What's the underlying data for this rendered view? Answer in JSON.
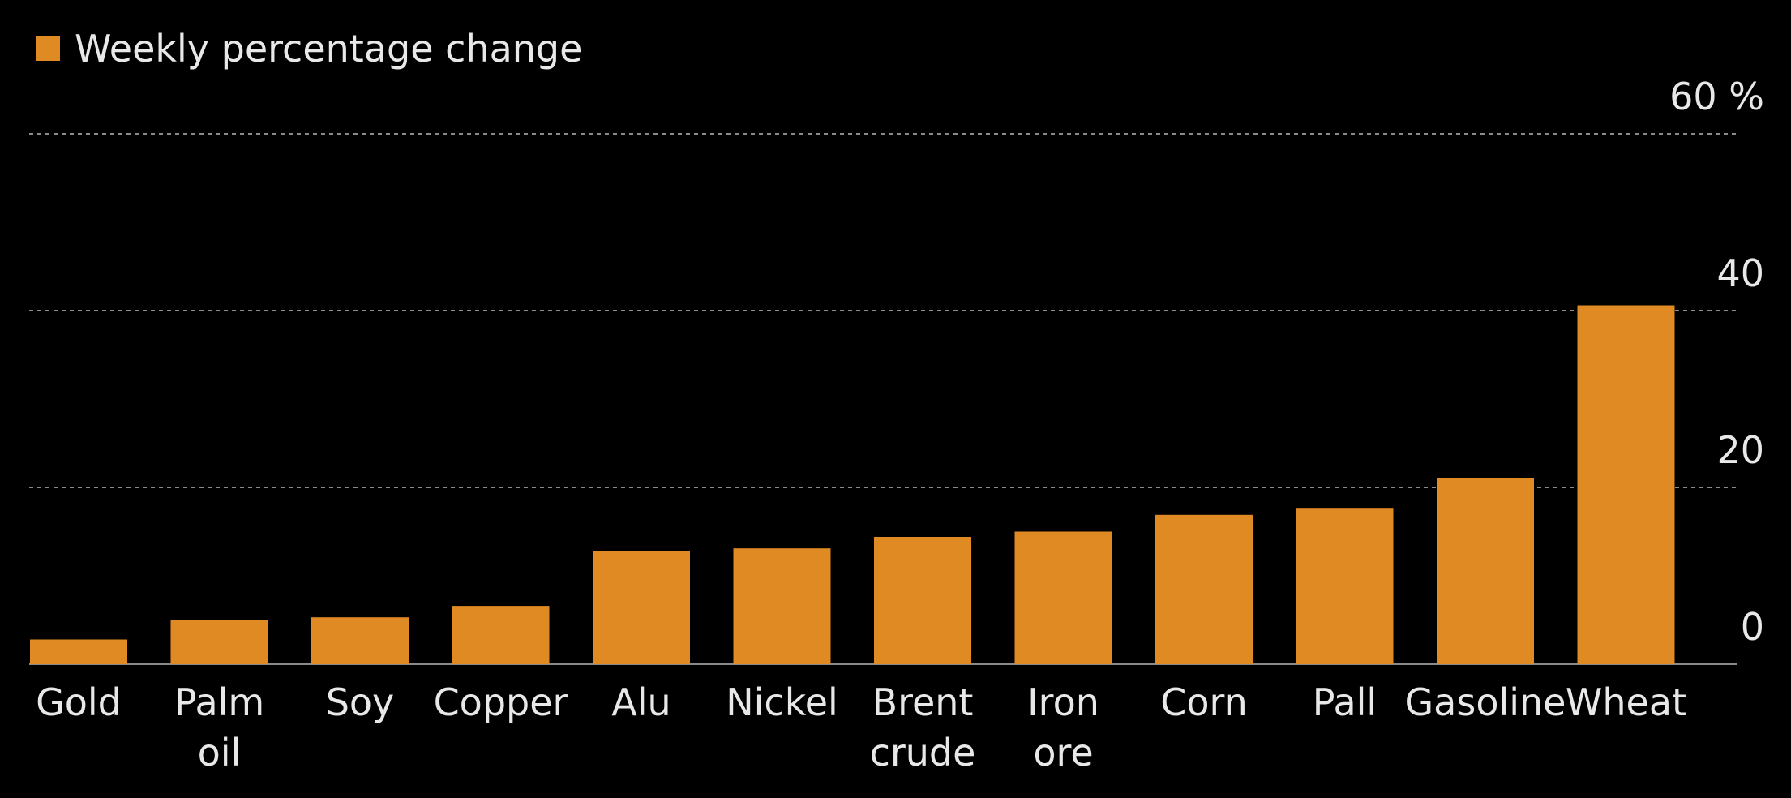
{
  "colors": {
    "background": "#000000",
    "bar": "#E08A24",
    "text": "#E8E8E8",
    "grid": "#8A8A8A"
  },
  "chart_data": {
    "type": "bar",
    "legend": {
      "label": "Weekly percentage change",
      "placement": "top-left"
    },
    "categories": [
      [
        "Gold"
      ],
      [
        "Palm",
        "oil"
      ],
      [
        "Soy"
      ],
      [
        "Copper"
      ],
      [
        "Alu"
      ],
      [
        "Nickel"
      ],
      [
        "Brent",
        "crude"
      ],
      [
        "Iron",
        "ore"
      ],
      [
        "Corn"
      ],
      [
        "Pall"
      ],
      [
        "Gasoline"
      ],
      [
        "Wheat"
      ]
    ],
    "series": [
      {
        "name": "Weekly percentage change",
        "values": [
          2.8,
          5.0,
          5.3,
          6.6,
          12.8,
          13.1,
          14.4,
          15.0,
          16.9,
          17.6,
          21.1,
          40.6
        ]
      }
    ],
    "y_ticks": [
      "0",
      "20",
      "40",
      "60 %"
    ],
    "y_tick_values": [
      0,
      20,
      40,
      60
    ],
    "ylim": [
      0,
      60
    ],
    "y_axis_side": "right",
    "grid": true
  }
}
